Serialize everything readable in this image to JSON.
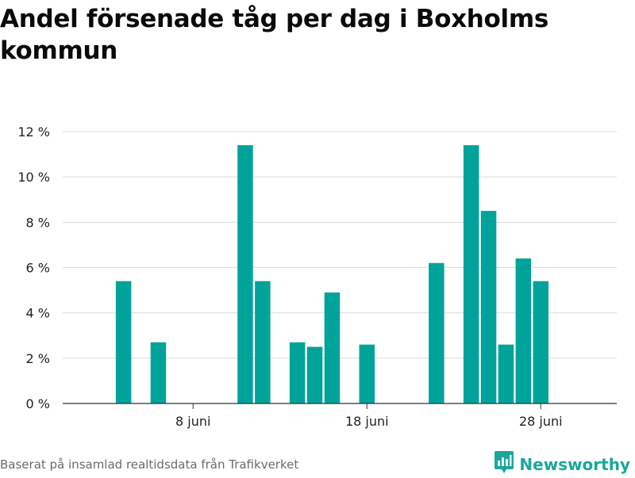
{
  "title": "Andel försenade tåg per dag i Boxholms kommun",
  "source": "Baserat på insamlad realtidsdata från Trafikverket",
  "brand": {
    "name": "Newsworthy",
    "logo_icon": "newsworthy-logo-icon",
    "color": "#1aa79a"
  },
  "colors": {
    "bar": "#00a39a",
    "grid": "#dcdcdc",
    "axis": "#333333"
  },
  "chart_data": {
    "type": "bar",
    "xlabel": "",
    "ylabel": "",
    "ylim": [
      0,
      12
    ],
    "yticks": [
      {
        "value": 0,
        "label": "0 %"
      },
      {
        "value": 2,
        "label": "2 %"
      },
      {
        "value": 4,
        "label": "4 %"
      },
      {
        "value": 6,
        "label": "6 %"
      },
      {
        "value": 8,
        "label": "8 %"
      },
      {
        "value": 10,
        "label": "10 %"
      },
      {
        "value": 12,
        "label": "12 %"
      }
    ],
    "xticks": [
      {
        "day": 8,
        "label": "8 juni"
      },
      {
        "day": 18,
        "label": "18 juni"
      },
      {
        "day": 28,
        "label": "28 juni"
      }
    ],
    "xrange": [
      1,
      31
    ],
    "grid": true,
    "unit": "%",
    "categories": [
      "4 juni",
      "5 juni",
      "6 juni",
      "7 juni",
      "8 juni",
      "9 juni",
      "10 juni",
      "11 juni",
      "12 juni",
      "13 juni",
      "14 juni",
      "15 juni",
      "16 juni",
      "17 juni",
      "18 juni",
      "19 juni",
      "20 juni",
      "21 juni",
      "22 juni",
      "23 juni",
      "24 juni",
      "25 juni",
      "26 juni",
      "27 juni",
      "28 juni",
      "29 juni"
    ],
    "days": [
      4,
      5,
      6,
      7,
      8,
      9,
      10,
      11,
      12,
      13,
      14,
      15,
      16,
      17,
      18,
      19,
      20,
      21,
      22,
      23,
      24,
      25,
      26,
      27,
      28,
      29
    ],
    "values": [
      5.4,
      0,
      2.7,
      0,
      0,
      0,
      0,
      11.4,
      5.4,
      0,
      2.7,
      2.5,
      4.9,
      0,
      2.6,
      0,
      0,
      0,
      6.2,
      0,
      11.4,
      8.5,
      2.6,
      6.4,
      5.4,
      0
    ]
  }
}
